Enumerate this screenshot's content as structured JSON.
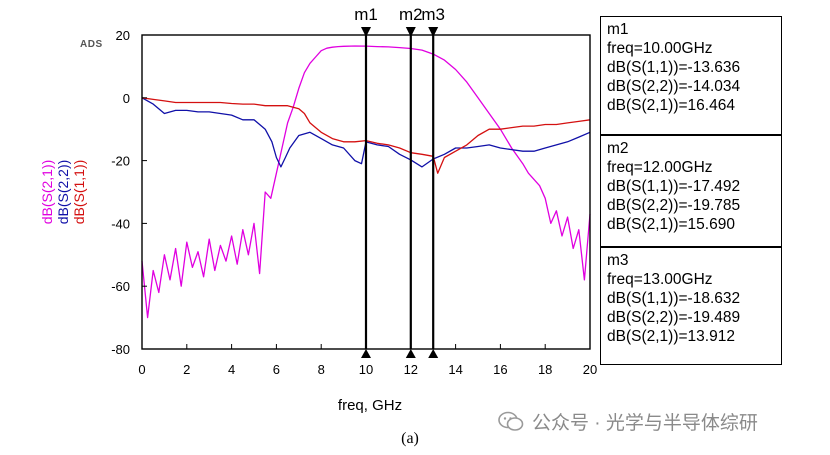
{
  "corner_label": "ADS",
  "caption": "(a)",
  "watermark": "公众号 · 光学与半导体综研",
  "chart_data": {
    "type": "line",
    "xlabel": "freq, GHz",
    "xlim": [
      0,
      20
    ],
    "ylim": [
      -80,
      20
    ],
    "xticks": [
      0,
      2,
      4,
      6,
      8,
      10,
      12,
      14,
      16,
      18,
      20
    ],
    "yticks": [
      20,
      0,
      -20,
      -40,
      -60,
      -80
    ],
    "grid": false,
    "series": [
      {
        "name": "dB(S(2,1))",
        "color": "#e000e0",
        "x": [
          0,
          0.25,
          0.5,
          0.75,
          1,
          1.25,
          1.5,
          1.75,
          2,
          2.25,
          2.5,
          2.75,
          3,
          3.25,
          3.5,
          3.75,
          4,
          4.25,
          4.5,
          4.75,
          5,
          5.25,
          5.5,
          5.75,
          6,
          6.25,
          6.5,
          6.75,
          7,
          7.25,
          7.5,
          7.75,
          8,
          8.25,
          8.5,
          8.75,
          9,
          9.5,
          10,
          10.5,
          11,
          11.5,
          12,
          12.5,
          13,
          13.5,
          14,
          14.5,
          15,
          15.5,
          16,
          16.5,
          17,
          17.25,
          17.5,
          17.75,
          18,
          18.25,
          18.5,
          18.75,
          19,
          19.25,
          19.5,
          19.75,
          20
        ],
        "values": [
          -52,
          -70,
          -55,
          -62,
          -50,
          -58,
          -48,
          -60,
          -46,
          -54,
          -49,
          -57,
          -45,
          -55,
          -47,
          -52,
          -44,
          -53,
          -42,
          -50,
          -40,
          -56,
          -30,
          -32,
          -24,
          -16,
          -8,
          -3,
          3,
          8,
          11,
          13,
          15,
          15.8,
          16.1,
          16.3,
          16.4,
          16.5,
          16.46,
          16.3,
          16.2,
          16,
          15.69,
          15.2,
          13.91,
          12,
          9,
          5,
          0,
          -5,
          -10,
          -16,
          -21,
          -24,
          -26,
          -28,
          -32,
          -40,
          -36,
          -44,
          -38,
          -48,
          -42,
          -58,
          -37
        ]
      },
      {
        "name": "dB(S(2,2))",
        "color": "#1010a8",
        "x": [
          0,
          0.5,
          1,
          1.5,
          2,
          2.5,
          3,
          3.5,
          4,
          4.5,
          5,
          5.5,
          5.8,
          6,
          6.2,
          6.4,
          6.6,
          7,
          7.5,
          8,
          8.5,
          9,
          9.5,
          9.8,
          10,
          10.5,
          11,
          11.5,
          12,
          12.5,
          13,
          13.5,
          14,
          14.5,
          15,
          15.5,
          16,
          16.5,
          17,
          17.5,
          18,
          18.5,
          19,
          19.5,
          20
        ],
        "values": [
          0,
          -2,
          -5,
          -4,
          -4,
          -4.5,
          -4.5,
          -5,
          -5.5,
          -7,
          -7,
          -10,
          -14,
          -19,
          -22,
          -19,
          -16,
          -12,
          -11,
          -13,
          -15,
          -16,
          -20,
          -21,
          -14.03,
          -15,
          -15.5,
          -18,
          -19.79,
          -22,
          -19.49,
          -18,
          -16,
          -16,
          -15.5,
          -15,
          -16,
          -16.5,
          -17,
          -17,
          -16,
          -15,
          -14,
          -12.5,
          -11
        ]
      },
      {
        "name": "dB(S(1,1))",
        "color": "#d41010",
        "x": [
          0,
          0.5,
          1,
          1.5,
          2,
          2.5,
          3,
          3.5,
          4,
          4.5,
          5,
          5.5,
          6,
          6.5,
          7,
          7.25,
          7.5,
          8,
          8.5,
          9,
          9.5,
          10,
          10.5,
          11,
          11.5,
          12,
          12.5,
          13,
          13.2,
          13.5,
          14,
          14.5,
          15,
          15.5,
          16,
          16.5,
          17,
          17.5,
          18,
          18.5,
          19,
          19.5,
          20
        ],
        "values": [
          0,
          -0.5,
          -1,
          -1.5,
          -1.5,
          -1.5,
          -1.5,
          -1.5,
          -1.8,
          -2,
          -2,
          -2.5,
          -2.5,
          -2.5,
          -3.5,
          -5,
          -8,
          -11,
          -13,
          -14,
          -14,
          -13.64,
          -14.5,
          -15,
          -16,
          -17.49,
          -18,
          -18.63,
          -24,
          -19,
          -17,
          -15,
          -12,
          -10,
          -10,
          -9.5,
          -9,
          -9,
          -8.5,
          -8.5,
          -8,
          -7.5,
          -7
        ]
      }
    ],
    "markers": [
      {
        "label": "m1",
        "freq_label": "freq=10.00GHz",
        "x": 10,
        "lines": [
          "dB(S(1,1))=-13.636",
          "dB(S(2,2))=-14.034",
          "dB(S(2,1))=16.464"
        ]
      },
      {
        "label": "m2",
        "freq_label": "freq=12.00GHz",
        "x": 12,
        "lines": [
          "dB(S(1,1))=-17.492",
          "dB(S(2,2))=-19.785",
          "dB(S(2,1))=15.690"
        ]
      },
      {
        "label": "m3",
        "freq_label": "freq=13.00GHz",
        "x": 13,
        "lines": [
          "dB(S(1,1))=-18.632",
          "dB(S(2,2))=-19.489",
          "dB(S(2,1))=13.912"
        ]
      }
    ]
  }
}
